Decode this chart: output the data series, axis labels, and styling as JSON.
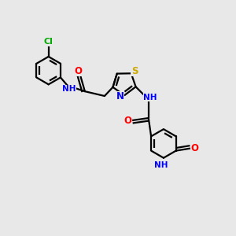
{
  "background_color": "#e8e8e8",
  "bond_color": "#000000",
  "nitrogen_color": "#0000ff",
  "oxygen_color": "#ff0000",
  "sulfur_color": "#ccaa00",
  "chlorine_color": "#00aa00",
  "line_width": 1.6,
  "font_size": 7.5,
  "figsize": [
    3.0,
    3.0
  ],
  "dpi": 100,
  "xlim": [
    -0.5,
    9.5
  ],
  "ylim": [
    -4.5,
    4.0
  ]
}
